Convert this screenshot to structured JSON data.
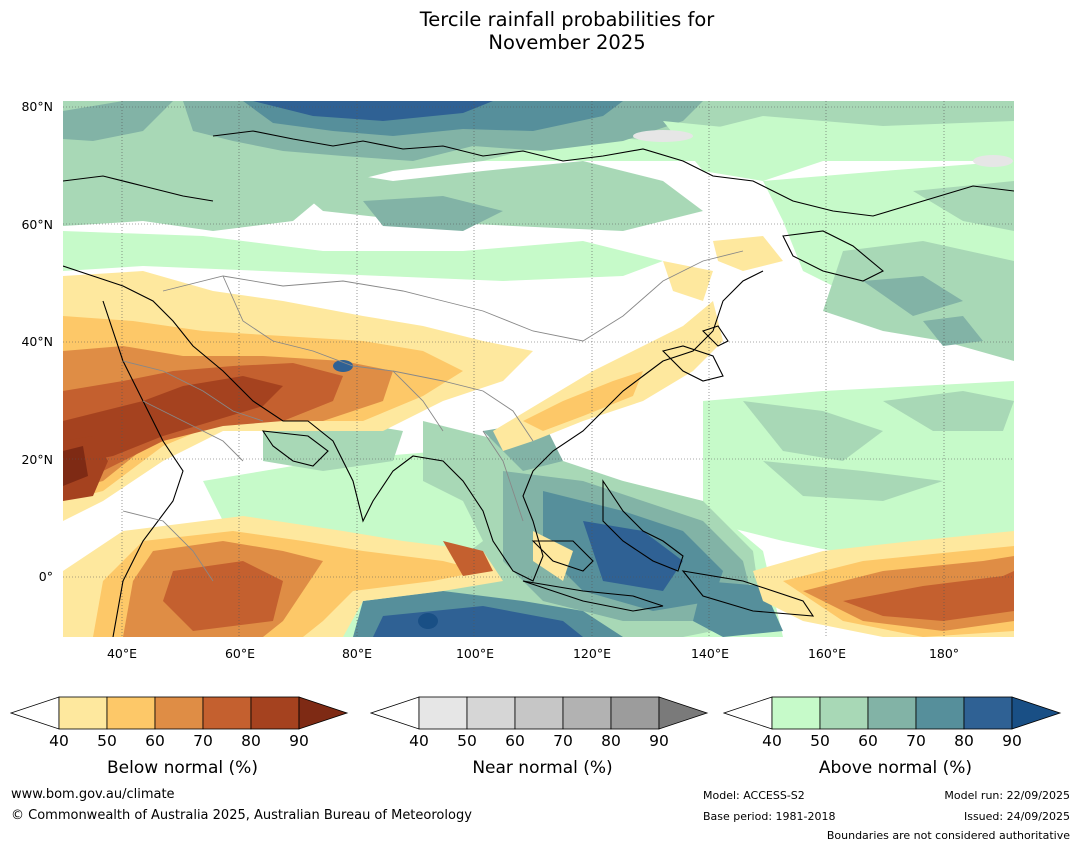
{
  "title": {
    "line1": "Tercile rainfall probabilities for",
    "line2": "November 2025"
  },
  "map": {
    "lat_labels": [
      "80°N",
      "60°N",
      "40°N",
      "20°N",
      "0°"
    ],
    "lon_labels": [
      "40°E",
      "60°E",
      "80°E",
      "100°E",
      "120°E",
      "140°E",
      "160°E",
      "180°"
    ],
    "lon_range": [
      30,
      192
    ],
    "lat_range": [
      -10,
      80
    ]
  },
  "colorbars": {
    "below": {
      "label": "Below normal (%)",
      "ticks": [
        "40",
        "50",
        "60",
        "70",
        "80",
        "90"
      ],
      "colors": [
        "#fee89e",
        "#fdc868",
        "#df8d45",
        "#c4602f",
        "#a5421f",
        "#7e2a14"
      ]
    },
    "near": {
      "label": "Near normal (%)",
      "ticks": [
        "40",
        "50",
        "60",
        "70",
        "80",
        "90"
      ],
      "colors": [
        "#e6e6e6",
        "#d6d6d6",
        "#c6c6c6",
        "#b2b2b2",
        "#9c9c9c",
        "#7a7a7a"
      ]
    },
    "above": {
      "label": "Above normal (%)",
      "ticks": [
        "40",
        "50",
        "60",
        "70",
        "80",
        "90"
      ],
      "colors": [
        "#c6fac9",
        "#a8d8b6",
        "#82b3a6",
        "#568f9b",
        "#2f6194",
        "#194f85"
      ]
    }
  },
  "footer": {
    "url": "www.bom.gov.au/climate",
    "copyright": "© Commonwealth of Australia 2025, Australian Bureau of Meteorology",
    "model": "Model: ACCESS-S2",
    "base_period": "Base period: 1981-2018",
    "model_run": "Model run: 22/09/2025",
    "issued": "Issued: 24/09/2025",
    "disclaimer": "Boundaries are not considered authoritative"
  }
}
